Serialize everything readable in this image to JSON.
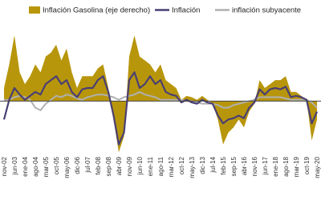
{
  "chart_data": {
    "type": "combo",
    "categories": [
      "nov-02",
      null,
      "jun-03",
      null,
      "ene-04",
      null,
      "ago-04",
      null,
      "mar-05",
      null,
      "oct-05",
      null,
      "may-06",
      null,
      "dic-06",
      null,
      "jul-07",
      null,
      "feb-08",
      null,
      "sep-08",
      null,
      "abr-09",
      null,
      "nov-09",
      null,
      "jun-10",
      null,
      "ene-11",
      null,
      "ago-11",
      null,
      "mar-12",
      null,
      "oct-12",
      null,
      "may-13",
      null,
      "dic-13",
      null,
      "jul-14",
      null,
      "feb-15",
      null,
      "sep-15",
      null,
      "abr-16",
      null,
      "nov-16",
      null,
      "jun-17",
      null,
      "ene-18",
      null,
      "ago-18",
      null,
      "mar-19",
      null,
      "oct-19",
      null,
      "may-20"
    ],
    "series": [
      {
        "name": "Inflación Gasolina (eje derecho)",
        "kind": "area",
        "axis": "y2",
        "color": "#b8960c",
        "values": [
          10,
          28,
          50,
          22,
          13,
          19,
          28,
          22,
          34,
          37,
          43,
          31,
          40,
          22,
          10,
          19,
          19,
          19,
          25,
          28,
          10,
          -14,
          -39,
          -27,
          34,
          50,
          34,
          31,
          28,
          22,
          28,
          16,
          13,
          10,
          1,
          4,
          3,
          1,
          4,
          1,
          -2,
          -14,
          -33,
          -24,
          -20,
          -14,
          -20,
          -8,
          -2,
          16,
          10,
          13,
          16,
          16,
          19,
          7,
          7,
          4,
          1,
          -30,
          -14
        ]
      },
      {
        "name": "Inflación",
        "kind": "line",
        "color": "#4a3f73",
        "values": [
          -1.4,
          0.1,
          1.0,
          0.5,
          0.1,
          0.4,
          0.7,
          0.5,
          1.3,
          1.6,
          1.9,
          1.3,
          1.6,
          0.7,
          0.3,
          0.9,
          1.0,
          1.0,
          1.6,
          1.9,
          0.7,
          -1.1,
          -3.3,
          -2.4,
          1.6,
          2.2,
          1.0,
          1.3,
          1.9,
          1.3,
          1.6,
          0.7,
          0.5,
          0.4,
          -0.1,
          0.1,
          -0.1,
          -0.2,
          0.1,
          -0.1,
          -0.2,
          -1.1,
          -1.7,
          -1.4,
          -1.3,
          -1.1,
          -1.3,
          -0.5,
          -0.1,
          0.9,
          0.5,
          0.9,
          1.0,
          0.9,
          1.1,
          0.3,
          0.4,
          0.3,
          0.1,
          -1.7,
          -0.8
        ]
      },
      {
        "name": "inflación subyacente",
        "kind": "line",
        "color": "#b0b0b0",
        "values": [
          0.1,
          0.1,
          0.3,
          0.4,
          0.3,
          0.1,
          -0.5,
          -0.7,
          -0.2,
          0.1,
          0.4,
          0.3,
          0.5,
          0.4,
          0.2,
          0.1,
          0.3,
          0.4,
          0.5,
          0.5,
          0.4,
          0.3,
          0.1,
          0.3,
          0.4,
          0.5,
          0.7,
          0.5,
          0.4,
          0.3,
          0.1,
          0.1,
          0.1,
          0.1,
          0.1,
          0,
          0,
          -0.1,
          -0.2,
          -0.2,
          -0.2,
          -0.3,
          -0.5,
          -0.5,
          -0.3,
          -0.2,
          -0.1,
          0,
          0.1,
          0.3,
          0.3,
          0.3,
          0.3,
          0.3,
          0.2,
          0.1,
          0.1,
          0.1,
          0.1,
          -0.1,
          -0.5
        ]
      }
    ],
    "ylim": [
      -4,
      6
    ],
    "y2lim": [
      -40,
      60
    ]
  }
}
